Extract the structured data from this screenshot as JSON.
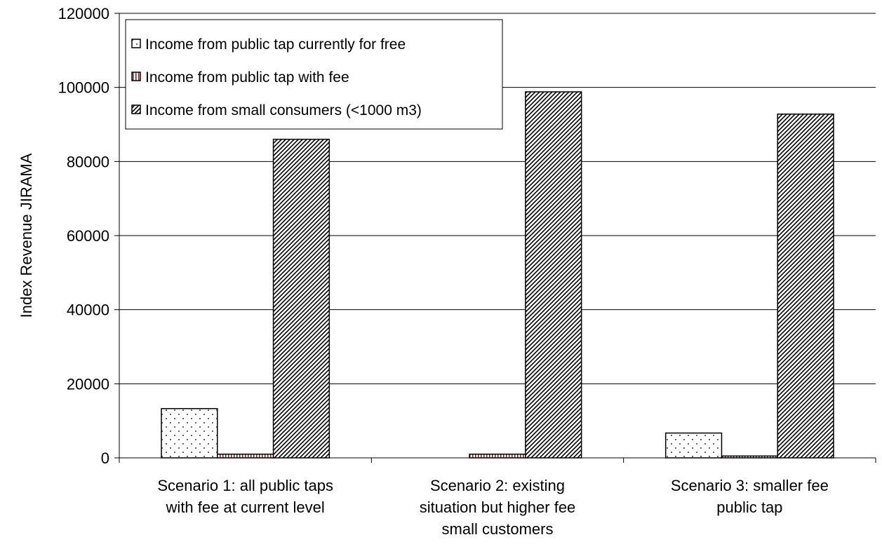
{
  "chart_data": {
    "type": "bar",
    "title": "",
    "xlabel": "",
    "ylabel": "Index Revenue JIRAMA",
    "ylim": [
      0,
      120000
    ],
    "yticks": [
      0,
      20000,
      40000,
      60000,
      80000,
      100000,
      120000
    ],
    "grid": true,
    "legend_position": "top-left",
    "categories": [
      [
        "Scenario 1: all public taps",
        "with fee at current level"
      ],
      [
        "Scenario 2: existing",
        "situation but higher fee",
        "small customers"
      ],
      [
        "Scenario 3: smaller fee",
        "public tap"
      ]
    ],
    "series": [
      {
        "name": "Income from public tap currently for free",
        "values": [
          13300,
          0,
          6700
        ],
        "pattern": "dots",
        "color": "#ffffff"
      },
      {
        "name": "Income from public tap with fee",
        "values": [
          1000,
          1000,
          500
        ],
        "pattern": "vlines-red",
        "color": "#c00000"
      },
      {
        "name": "Income from small consumers (<1000 m3)",
        "values": [
          86000,
          98800,
          92800
        ],
        "pattern": "diag",
        "color": "#000000"
      }
    ]
  }
}
